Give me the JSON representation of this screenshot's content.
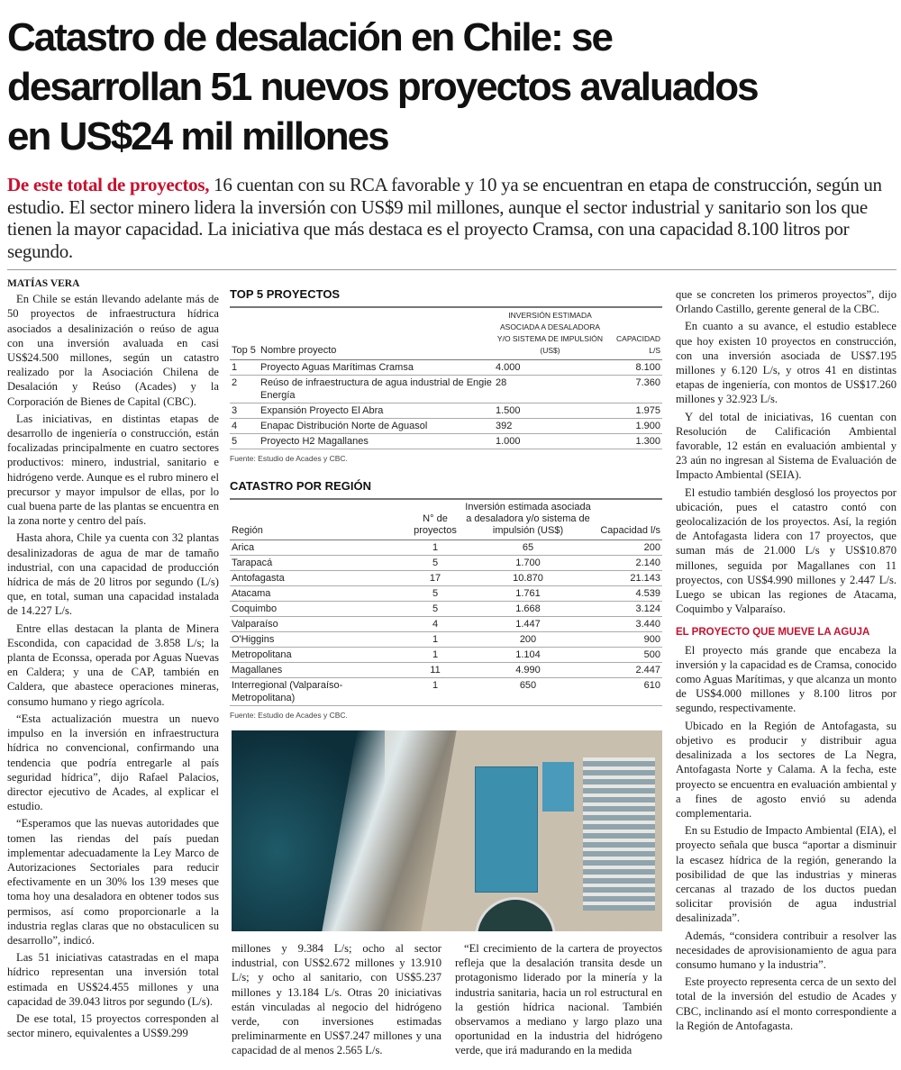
{
  "headline": [
    "Catastro de desalación en Chile: se",
    "desarrollan 51 nuevos proyectos avaluados",
    "en US$24 mil millones"
  ],
  "lead": {
    "kicker": "De este total de proyectos,",
    "text": " 16 cuentan con su RCA favorable y 10 ya se encuentran en etapa de construcción, según un estudio. El sector minero lidera la inversión con US$9 mil millones, aunque el sector industrial y sanitario son los que tienen la mayor capacidad. La iniciativa que más destaca es el proyecto Cramsa, con una capacidad 8.100 litros por segundo."
  },
  "byline": "Matías Vera",
  "left_column": [
    "En Chile se están llevando adelante más de 50 proyectos de infraestructura hídrica asociados a desalinización o reúso de agua con una inversión avaluada en casi US$24.500 millones, según un catastro realizado por la Asociación Chilena de Desalación y Reúso (Acades) y la Corporación de Bienes de Capital (CBC).",
    "Las iniciativas, en distintas etapas de desarrollo de ingeniería o construcción, están focalizadas principalmente en cuatro sectores productivos: minero, industrial, sanitario e hidrógeno verde. Aunque es el rubro minero el precursor y mayor impulsor de ellas, por lo cual buena parte de las plantas se encuentra en la zona norte y centro del país.",
    "Hasta ahora, Chile ya cuenta con 32 plantas desalinizadoras de agua de mar de tamaño industrial, con una capacidad de producción hídrica de más de 20 litros por segundo (L/s) que, en total, suman una capacidad instalada de 14.227 L/s.",
    "Entre ellas destacan la planta de Minera Escondida, con capacidad de 3.858 L/s; la planta de Econssa, operada por Aguas Nuevas en Caldera; y una de CAP, también en Caldera, que abastece operaciones mineras, consumo humano y riego agrícola.",
    "“Esta actualización muestra un nuevo impulso en la inversión en infraestructura hídrica no convencional, confirmando una tendencia que podría entregarle al país seguridad hídrica”, dijo Rafael Palacios, director ejecutivo de Acades, al explicar el estudio.",
    "“Esperamos que las nuevas autoridades que tomen las riendas del país puedan implementar adecuadamente la Ley Marco de Autorizaciones Sectoriales para reducir efectivamente en un 30% los 139 meses que toma hoy una desaladora en obtener todos sus permisos, así como proporcionarle a la industria reglas claras que no obstaculicen su desarrollo”, indicó.",
    "Las 51 iniciativas catastradas en el mapa hídrico representan una inversión total estimada en US$24.455 millones y una capacidad de 39.043 litros por segundo (L/s).",
    "De ese total, 15 proyectos corresponden al sector minero, equivalentes a US$9.299"
  ],
  "mid_column_a": "millones y 9.384 L/s; ocho al sector industrial, con US$2.672 millones y 13.910 L/s; y ocho al sanitario, con US$5.237 millones y 13.184 L/s. Otras 20 iniciativas están vinculadas al negocio del hidrógeno verde, con inversiones estimadas preliminarmente en US$7.247 millones y una capacidad de al menos 2.565 L/s.",
  "mid_column_b": "“El crecimiento de la cartera de proyectos refleja que la desalación transita desde un protagonismo liderado por la minería y la industria sanitaria, hacia un rol estructural en la gestión hídrica nacional. También observamos a mediano y largo plazo una oportunidad en la industria del hidrógeno verde, que irá madurando en la medida",
  "right_column": {
    "paragraphs_a": [
      "que se concreten los primeros proyectos”, dijo Orlando Castillo, gerente general de la CBC.",
      "En cuanto a su avance, el estudio establece que hoy existen 10 proyectos en construcción, con una inversión asociada de US$7.195 millones y 6.120 L/s, y otros 41 en distintas etapas de ingeniería, con montos de US$17.260 millones y 32.923 L/s.",
      "Y del total de iniciativas, 16 cuentan con Resolución de Calificación Ambiental favorable, 12 están en evaluación ambiental y 23 aún no ingresan al Sistema de Evaluación de Impacto Ambiental (SEIA).",
      "El estudio también desglosó los proyectos por ubicación, pues el catastro contó con geolocalización de los proyectos. Así, la región de Antofagasta lidera con 17 proyectos, que suman más de 21.000 L/s y US$10.870 millones, seguida por Magallanes con 11 proyectos, con US$4.990 millones y 2.447 L/s. Luego se ubican las regiones de Atacama, Coquimbo y Valparaíso."
    ],
    "subhead": "EL PROYECTO QUE MUEVE LA AGUJA",
    "paragraphs_b": [
      "El proyecto más grande que encabeza la inversión y la capacidad es de Cramsa, conocido como Aguas Marítimas, y que alcanza un monto de US$4.000 millones y 8.100 litros por segundo, respectivamente.",
      "Ubicado en la Región de Antofagasta, su objetivo es producir y distribuir agua desalinizada a los sectores de La Negra, Antofagasta Norte y Calama. A la fecha, este proyecto se encuentra en evaluación ambiental y a fines de agosto envió su adenda complementaria.",
      "En su Estudio de Impacto Ambiental (EIA), el proyecto señala que busca “aportar a disminuir la escasez hídrica de la región, generando la posibilidad de que las industrias y mineras cercanas al trazado de los ductos puedan solicitar provisión de agua industrial desalinizada”.",
      "Además, “considera contribuir a resolver las necesidades de aprovisionamiento de agua para consumo humano y la industria”.",
      "Este proyecto representa cerca de un sexto del total de la inversión del estudio de Acades y CBC, inclinando así el monto correspondiente a la Región de Antofagasta."
    ]
  },
  "top5": {
    "title": "TOP 5 PROYECTOS",
    "headers": [
      "Top 5",
      "Nombre proyecto",
      "Inversión estimada asociada a desaladora y/o sistema de impulsión (US$)",
      "Capacidad l/s"
    ],
    "rows": [
      [
        "1",
        "Proyecto Aguas Marítimas Cramsa",
        "4.000",
        "8.100"
      ],
      [
        "2",
        "Reúso de infraestructura de agua industrial de Engie Energía",
        "28",
        "7.360"
      ],
      [
        "3",
        "Expansión Proyecto El Abra",
        "1.500",
        "1.975"
      ],
      [
        "4",
        "Enapac Distribución Norte de Aguasol",
        "392",
        "1.900"
      ],
      [
        "5",
        "Proyecto H2 Magallanes",
        "1.000",
        "1.300"
      ]
    ],
    "source": "Fuente: Estudio de Acades y CBC."
  },
  "region": {
    "title": "CATASTRO POR REGIÓN",
    "headers": [
      "Región",
      "N° de proyectos",
      "Inversión estimada asociada a desaladora y/o sistema de impulsión (US$)",
      "Capacidad l/s"
    ],
    "rows": [
      [
        "Arica",
        "1",
        "65",
        "200"
      ],
      [
        "Tarapacá",
        "5",
        "1.700",
        "2.140"
      ],
      [
        "Antofagasta",
        "17",
        "10.870",
        "21.143"
      ],
      [
        "Atacama",
        "5",
        "1.761",
        "4.539"
      ],
      [
        "Coquimbo",
        "5",
        "1.668",
        "3.124"
      ],
      [
        "Valparaíso",
        "4",
        "1.447",
        "3.440"
      ],
      [
        "O'Higgins",
        "1",
        "200",
        "900"
      ],
      [
        "Metropolitana",
        "1",
        "1.104",
        "500"
      ],
      [
        "Magallanes",
        "11",
        "4.990",
        "2.447"
      ],
      [
        "Interregional (Valparaíso- Metropolitana)",
        "1",
        "650",
        "610"
      ]
    ],
    "source": "Fuente: Estudio de Acades y CBC."
  },
  "colors": {
    "accent": "#c8102e",
    "text": "#1a1a1a"
  }
}
